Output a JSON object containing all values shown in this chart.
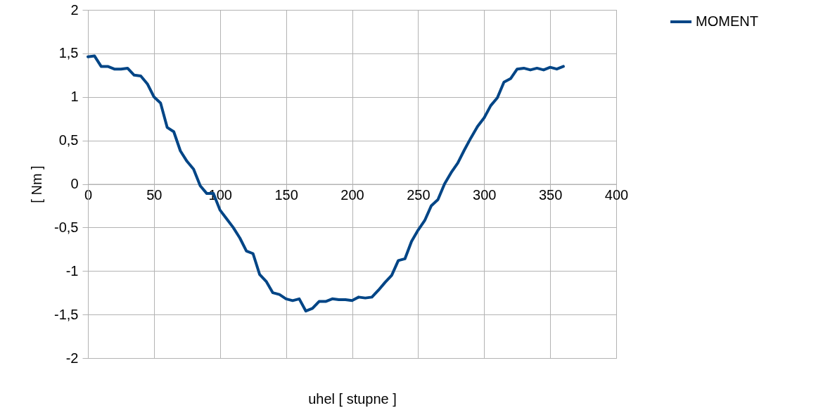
{
  "chart_data": {
    "type": "line",
    "xlabel": "uhel [ stupne ]",
    "ylabel": "[ Nm ]",
    "x": [
      0,
      5,
      10,
      15,
      20,
      25,
      30,
      35,
      40,
      45,
      50,
      55,
      60,
      65,
      70,
      75,
      80,
      85,
      90,
      95,
      100,
      105,
      110,
      115,
      120,
      125,
      130,
      135,
      140,
      145,
      150,
      155,
      160,
      165,
      170,
      175,
      180,
      185,
      190,
      195,
      200,
      205,
      210,
      215,
      220,
      225,
      230,
      235,
      240,
      245,
      250,
      255,
      260,
      265,
      270,
      275,
      280,
      285,
      290,
      295,
      300,
      305,
      310,
      315,
      320,
      325,
      330,
      335,
      340,
      345,
      350,
      355,
      360
    ],
    "series": [
      {
        "name": "MOMENT",
        "color": "#004586",
        "values": [
          1.46,
          1.47,
          1.35,
          1.35,
          1.32,
          1.32,
          1.33,
          1.25,
          1.24,
          1.15,
          1.0,
          0.93,
          0.65,
          0.6,
          0.38,
          0.26,
          0.17,
          -0.02,
          -0.11,
          -0.11,
          -0.3,
          -0.4,
          -0.5,
          -0.62,
          -0.77,
          -0.8,
          -1.04,
          -1.12,
          -1.25,
          -1.27,
          -1.32,
          -1.34,
          -1.32,
          -1.46,
          -1.43,
          -1.35,
          -1.35,
          -1.32,
          -1.33,
          -1.33,
          -1.34,
          -1.3,
          -1.31,
          -1.3,
          -1.22,
          -1.13,
          -1.05,
          -0.88,
          -0.86,
          -0.66,
          -0.53,
          -0.42,
          -0.25,
          -0.18,
          0.0,
          0.13,
          0.24,
          0.39,
          0.53,
          0.66,
          0.76,
          0.9,
          0.99,
          1.17,
          1.21,
          1.32,
          1.33,
          1.31,
          1.33,
          1.31,
          1.34,
          1.32,
          1.35
        ]
      }
    ],
    "xlim": [
      0,
      400
    ],
    "xticks": [
      0,
      50,
      100,
      150,
      200,
      250,
      300,
      350,
      400
    ],
    "ylim": [
      -2,
      2
    ],
    "yticks": [
      {
        "value": -2,
        "label": "-2"
      },
      {
        "value": -1.5,
        "label": "-1,5"
      },
      {
        "value": -1,
        "label": "-1"
      },
      {
        "value": -0.5,
        "label": "-0,5"
      },
      {
        "value": 0,
        "label": "0"
      },
      {
        "value": 0.5,
        "label": "0,5"
      },
      {
        "value": 1,
        "label": "1"
      },
      {
        "value": 1.5,
        "label": "1,5"
      },
      {
        "value": 2,
        "label": "2"
      }
    ],
    "grid": true,
    "legend": "right",
    "marker": "none",
    "line_style": "solid"
  }
}
